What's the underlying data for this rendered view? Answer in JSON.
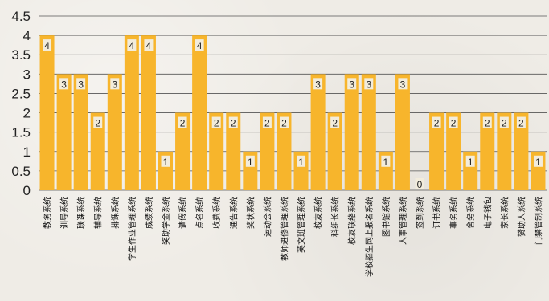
{
  "chart_data": {
    "type": "bar",
    "title": "",
    "xlabel": "",
    "ylabel": "",
    "ylim": [
      0,
      4.5
    ],
    "yticks": [
      "0",
      "0.5",
      "1",
      "1.5",
      "2",
      "2.5",
      "3",
      "3.5",
      "4",
      "4.5"
    ],
    "grid": true,
    "bar_color": "#f7b52c",
    "label_bg_color": "#f2ecdc",
    "categories": [
      "教务系统",
      "训导系统",
      "联课系统",
      "辅导系统",
      "排课系统",
      "学生作业管理系统",
      "成绩系统",
      "奖助学金系统",
      "请假系统",
      "点名系统",
      "收费系统",
      "通告系统",
      "奖状系统",
      "运动会系统",
      "教师进修管理系统",
      "英文班管理系统",
      "校友系统",
      "科组长系统",
      "校友联络系统",
      "学校招生网上报名系统",
      "图书馆系统",
      "人事管理系统",
      "签到系统",
      "订书系统",
      "事务系统",
      "舍务系统",
      "电子钱包",
      "家长系统",
      "赞助人系统",
      "门禁管制系统"
    ],
    "values": [
      4,
      3,
      3,
      2,
      3,
      4,
      4,
      1,
      2,
      4,
      2,
      2,
      1,
      2,
      2,
      1,
      3,
      2,
      3,
      3,
      1,
      3,
      0,
      2,
      2,
      1,
      2,
      2,
      2,
      1
    ]
  }
}
